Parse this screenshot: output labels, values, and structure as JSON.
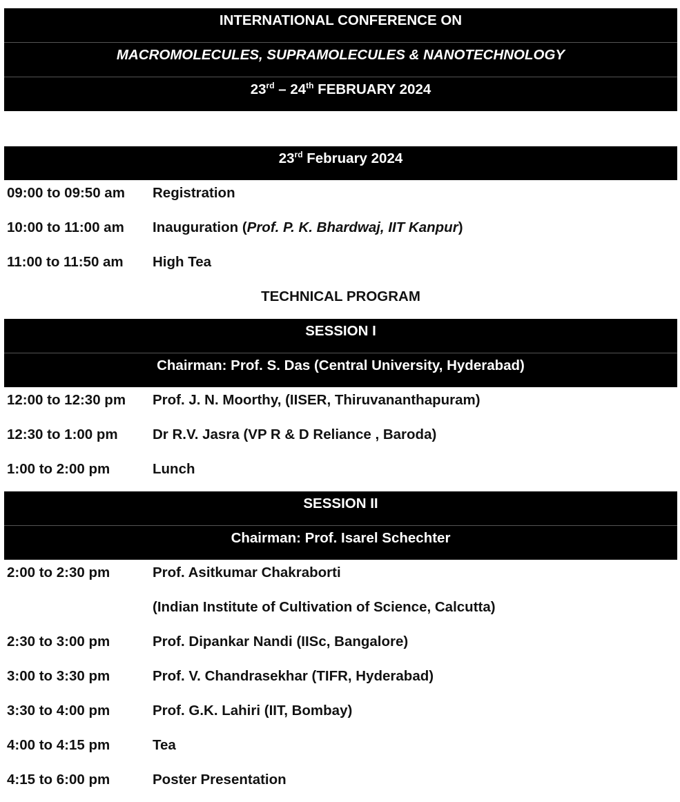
{
  "header": {
    "line1": "INTERNATIONAL CONFERENCE ON",
    "line2": "MACROMOLECULES, SUPRAMOLECULES & NANOTECHNOLOGY",
    "dates": {
      "d1": "23",
      "d1_sup": "rd",
      "sep": " – 24",
      "d2_sup": "th",
      "rest": " FEBRUARY 2024"
    }
  },
  "day1": {
    "day": "23",
    "day_sup": "rd",
    "day_rest": " February 2024"
  },
  "opening": [
    {
      "time": "09:00 to 09:50 am",
      "desc": "Registration"
    },
    {
      "time": "10:00 to 11:00 am",
      "desc": "Inauguration (",
      "desc_italic": "Prof. P. K. Bhardwaj, IIT Kanpur",
      "desc_end": ")"
    },
    {
      "time": "11:00 to 11:50 am",
      "desc": "High Tea"
    }
  ],
  "technical_program": "TECHNICAL PROGRAM",
  "session1": {
    "title": "SESSION I",
    "chair": "Chairman: Prof. S. Das (Central University, Hyderabad)",
    "items": [
      {
        "time": "12:00 to 12:30 pm",
        "desc": "Prof. J. N. Moorthy, (IISER, Thiruvananthapuram)"
      },
      {
        "time": "12:30 to 1:00 pm",
        "desc": "Dr R.V. Jasra (VP R & D Reliance , Baroda)"
      },
      {
        "time": "1:00 to 2:00 pm",
        "desc": "Lunch"
      }
    ]
  },
  "session2": {
    "title": "SESSION II",
    "chair": "Chairman: Prof. Isarel Schechter",
    "items": [
      {
        "time": "2:00 to 2:30 pm",
        "desc": "Prof. Asitkumar Chakraborti"
      },
      {
        "time": "",
        "desc": "(Indian Institute of Cultivation of Science, Calcutta)"
      },
      {
        "time": "2:30 to 3:00 pm",
        "desc": "Prof. Dipankar Nandi (IISc, Bangalore)"
      },
      {
        "time": "3:00 to 3:30 pm",
        "desc": "Prof. V. Chandrasekhar (TIFR, Hyderabad)"
      },
      {
        "time": "3:30 to 4:00 pm",
        "desc": "Prof. G.K. Lahiri (IIT, Bombay)"
      },
      {
        "time": "4:00 to 4:15 pm",
        "desc": "Tea"
      },
      {
        "time": "4:15 to 6:00 pm",
        "desc": "Poster Presentation"
      }
    ]
  }
}
